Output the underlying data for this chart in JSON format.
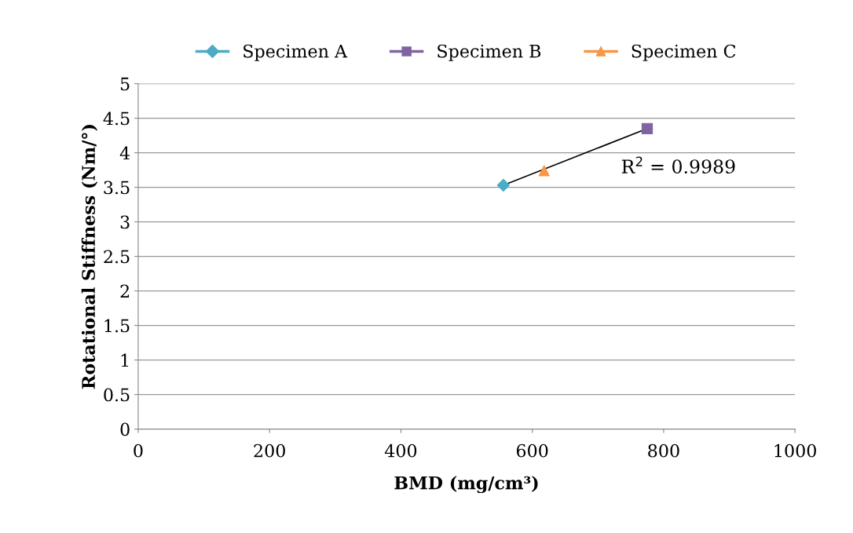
{
  "chart_data": {
    "type": "scatter",
    "xlabel": "BMD (mg/cm³)",
    "ylabel": "Rotational Stiffness (Nm/°)",
    "series": [
      {
        "name": "Specimen A",
        "color": "#4bacc6",
        "marker": "diamond",
        "x": [
          556
        ],
        "values": [
          3.53
        ]
      },
      {
        "name": "Specimen B",
        "color": "#8064a2",
        "marker": "square",
        "x": [
          775
        ],
        "values": [
          4.35
        ]
      },
      {
        "name": "Specimen C",
        "color": "#f79646",
        "marker": "triangle",
        "x": [
          618
        ],
        "values": [
          3.74
        ]
      },
      {
        "type": "line",
        "color": "#000000",
        "marker": "none",
        "x": [
          556,
          775
        ],
        "values": [
          3.53,
          4.35
        ]
      }
    ],
    "annotations": [
      "R$^{2}$ = 0.9989"
    ],
    "xlim": [
      0,
      1000
    ],
    "xticks": [
      0,
      200,
      400,
      600,
      800,
      1000
    ],
    "ylim": [
      0,
      5
    ],
    "yticks": [
      0,
      0.5,
      1,
      1.5,
      2,
      2.5,
      3,
      3.5,
      4,
      4.5,
      5
    ],
    "grid": "y",
    "legend": "top"
  }
}
